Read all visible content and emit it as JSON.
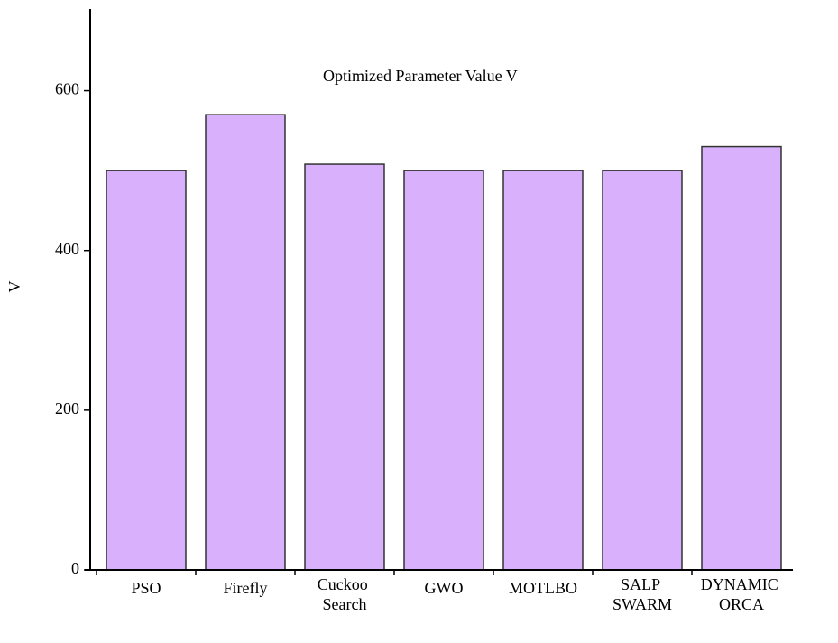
{
  "chart_data": {
    "type": "bar",
    "title": "Optimized Parameter Value V",
    "y_label": "V",
    "categories": [
      "PSO",
      "Firefly",
      "Cuckoo Search",
      "GWO",
      "MOTLBO",
      "SALP SWARM",
      "DYNAMIC ORCA"
    ],
    "values": [
      500,
      570,
      508,
      500,
      500,
      500,
      530
    ],
    "color": "#d9b0fc",
    "ylim": [
      0,
      700
    ],
    "yticks": [
      0,
      200,
      400,
      600
    ],
    "grid": false
  }
}
